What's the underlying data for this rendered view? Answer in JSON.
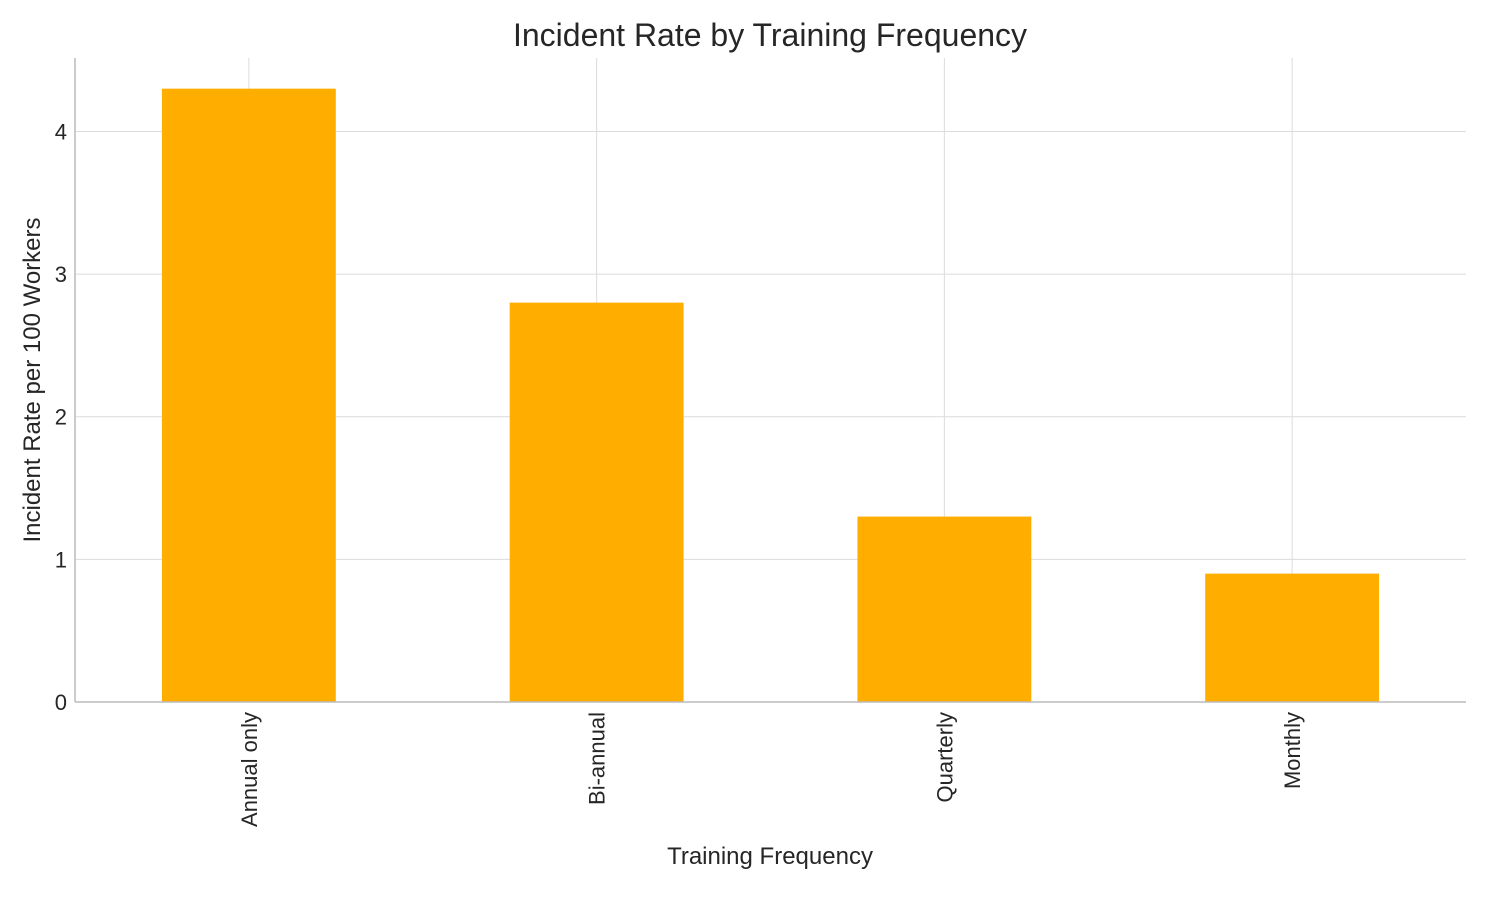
{
  "chart_data": {
    "type": "bar",
    "title": "Incident Rate by Training Frequency",
    "xlabel": "Training Frequency",
    "ylabel": "Incident Rate per 100 Workers",
    "categories": [
      "Annual only",
      "Bi-annual",
      "Quarterly",
      "Monthly"
    ],
    "values": [
      4.3,
      2.8,
      1.3,
      0.9
    ],
    "ylim": [
      0,
      4.515
    ],
    "yticks": [
      "0",
      "1",
      "2",
      "3",
      "4"
    ],
    "grid": true,
    "bar_color": "#FFAE00"
  }
}
